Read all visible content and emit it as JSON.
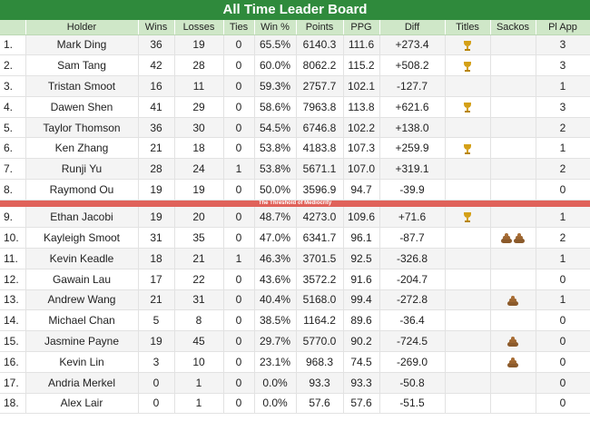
{
  "title": "All Time Leader Board",
  "columns": [
    "",
    "Holder",
    "Wins",
    "Losses",
    "Ties",
    "Win %",
    "Points",
    "PPG",
    "Diff",
    "Titles",
    "Sackos",
    "Pl App"
  ],
  "divider_label": "The Threshold of Mediocrity",
  "colors": {
    "header_green": "#2f8a3c",
    "column_header": "#cfe7c8",
    "divider_red": "#e0625a",
    "trophy": "#d4a017",
    "poop": "#8b5a2b"
  },
  "rows": [
    {
      "rank": "1.",
      "holder": "Mark Ding",
      "wins": "36",
      "losses": "19",
      "ties": "0",
      "winpct": "65.5%",
      "points": "6140.3",
      "ppg": "111.6",
      "diff": "+273.4",
      "titles": 1,
      "sackos": 0,
      "plapp": "3"
    },
    {
      "rank": "2.",
      "holder": "Sam Tang",
      "wins": "42",
      "losses": "28",
      "ties": "0",
      "winpct": "60.0%",
      "points": "8062.2",
      "ppg": "115.2",
      "diff": "+508.2",
      "titles": 1,
      "sackos": 0,
      "plapp": "3"
    },
    {
      "rank": "3.",
      "holder": "Tristan Smoot",
      "wins": "16",
      "losses": "11",
      "ties": "0",
      "winpct": "59.3%",
      "points": "2757.7",
      "ppg": "102.1",
      "diff": "-127.7",
      "titles": 0,
      "sackos": 0,
      "plapp": "1"
    },
    {
      "rank": "4.",
      "holder": "Dawen Shen",
      "wins": "41",
      "losses": "29",
      "ties": "0",
      "winpct": "58.6%",
      "points": "7963.8",
      "ppg": "113.8",
      "diff": "+621.6",
      "titles": 1,
      "sackos": 0,
      "plapp": "3"
    },
    {
      "rank": "5.",
      "holder": "Taylor Thomson",
      "wins": "36",
      "losses": "30",
      "ties": "0",
      "winpct": "54.5%",
      "points": "6746.8",
      "ppg": "102.2",
      "diff": "+138.0",
      "titles": 0,
      "sackos": 0,
      "plapp": "2"
    },
    {
      "rank": "6.",
      "holder": "Ken Zhang",
      "wins": "21",
      "losses": "18",
      "ties": "0",
      "winpct": "53.8%",
      "points": "4183.8",
      "ppg": "107.3",
      "diff": "+259.9",
      "titles": 1,
      "sackos": 0,
      "plapp": "1"
    },
    {
      "rank": "7.",
      "holder": "Runji Yu",
      "wins": "28",
      "losses": "24",
      "ties": "1",
      "winpct": "53.8%",
      "points": "5671.1",
      "ppg": "107.0",
      "diff": "+319.1",
      "titles": 0,
      "sackos": 0,
      "plapp": "2"
    },
    {
      "rank": "8.",
      "holder": "Raymond Ou",
      "wins": "19",
      "losses": "19",
      "ties": "0",
      "winpct": "50.0%",
      "points": "3596.9",
      "ppg": "94.7",
      "diff": "-39.9",
      "titles": 0,
      "sackos": 0,
      "plapp": "0"
    },
    {
      "rank": "9.",
      "holder": "Ethan Jacobi",
      "wins": "19",
      "losses": "20",
      "ties": "0",
      "winpct": "48.7%",
      "points": "4273.0",
      "ppg": "109.6",
      "diff": "+71.6",
      "titles": 1,
      "sackos": 0,
      "plapp": "1"
    },
    {
      "rank": "10.",
      "holder": "Kayleigh Smoot",
      "wins": "31",
      "losses": "35",
      "ties": "0",
      "winpct": "47.0%",
      "points": "6341.7",
      "ppg": "96.1",
      "diff": "-87.7",
      "titles": 0,
      "sackos": 2,
      "plapp": "2"
    },
    {
      "rank": "11.",
      "holder": "Kevin Keadle",
      "wins": "18",
      "losses": "21",
      "ties": "1",
      "winpct": "46.3%",
      "points": "3701.5",
      "ppg": "92.5",
      "diff": "-326.8",
      "titles": 0,
      "sackos": 0,
      "plapp": "1"
    },
    {
      "rank": "12.",
      "holder": "Gawain Lau",
      "wins": "17",
      "losses": "22",
      "ties": "0",
      "winpct": "43.6%",
      "points": "3572.2",
      "ppg": "91.6",
      "diff": "-204.7",
      "titles": 0,
      "sackos": 0,
      "plapp": "0"
    },
    {
      "rank": "13.",
      "holder": "Andrew Wang",
      "wins": "21",
      "losses": "31",
      "ties": "0",
      "winpct": "40.4%",
      "points": "5168.0",
      "ppg": "99.4",
      "diff": "-272.8",
      "titles": 0,
      "sackos": 1,
      "plapp": "1"
    },
    {
      "rank": "14.",
      "holder": "Michael Chan",
      "wins": "5",
      "losses": "8",
      "ties": "0",
      "winpct": "38.5%",
      "points": "1164.2",
      "ppg": "89.6",
      "diff": "-36.4",
      "titles": 0,
      "sackos": 0,
      "plapp": "0"
    },
    {
      "rank": "15.",
      "holder": "Jasmine Payne",
      "wins": "19",
      "losses": "45",
      "ties": "0",
      "winpct": "29.7%",
      "points": "5770.0",
      "ppg": "90.2",
      "diff": "-724.5",
      "titles": 0,
      "sackos": 1,
      "plapp": "0"
    },
    {
      "rank": "16.",
      "holder": "Kevin Lin",
      "wins": "3",
      "losses": "10",
      "ties": "0",
      "winpct": "23.1%",
      "points": "968.3",
      "ppg": "74.5",
      "diff": "-269.0",
      "titles": 0,
      "sackos": 1,
      "plapp": "0"
    },
    {
      "rank": "17.",
      "holder": "Andria Merkel",
      "wins": "0",
      "losses": "1",
      "ties": "0",
      "winpct": "0.0%",
      "points": "93.3",
      "ppg": "93.3",
      "diff": "-50.8",
      "titles": 0,
      "sackos": 0,
      "plapp": "0"
    },
    {
      "rank": "18.",
      "holder": "Alex Lair",
      "wins": "0",
      "losses": "1",
      "ties": "0",
      "winpct": "0.0%",
      "points": "57.6",
      "ppg": "57.6",
      "diff": "-51.5",
      "titles": 0,
      "sackos": 0,
      "plapp": "0"
    }
  ]
}
